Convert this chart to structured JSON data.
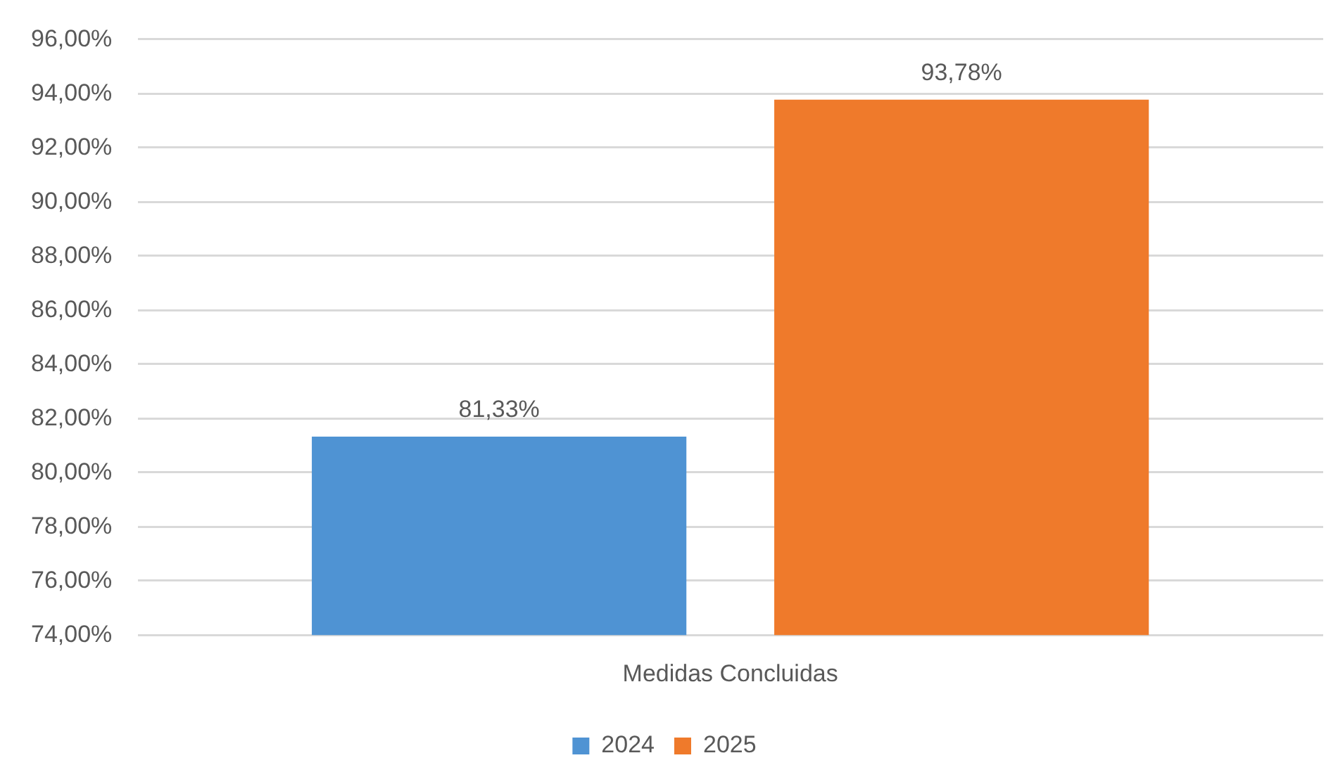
{
  "chart_data": {
    "type": "bar",
    "categories": [
      "Medidas Concluidas"
    ],
    "series": [
      {
        "name": "2024",
        "color": "#4f93d3",
        "values": [
          81.33
        ],
        "value_labels": [
          "81,33%"
        ]
      },
      {
        "name": "2025",
        "color": "#ef7a2b",
        "values": [
          93.78
        ],
        "value_labels": [
          "93,78%"
        ]
      }
    ],
    "ylim": [
      74,
      96
    ],
    "yticks": [
      {
        "value": 74,
        "label": "74,00%"
      },
      {
        "value": 76,
        "label": "76,00%"
      },
      {
        "value": 78,
        "label": "78,00%"
      },
      {
        "value": 80,
        "label": "80,00%"
      },
      {
        "value": 82,
        "label": "82,00%"
      },
      {
        "value": 84,
        "label": "84,00%"
      },
      {
        "value": 86,
        "label": "86,00%"
      },
      {
        "value": 88,
        "label": "88,00%"
      },
      {
        "value": 90,
        "label": "90,00%"
      },
      {
        "value": 92,
        "label": "92,00%"
      },
      {
        "value": 94,
        "label": "94,00%"
      },
      {
        "value": 96,
        "label": "96,00%"
      }
    ],
    "grid": "y",
    "legend": "bottom"
  }
}
